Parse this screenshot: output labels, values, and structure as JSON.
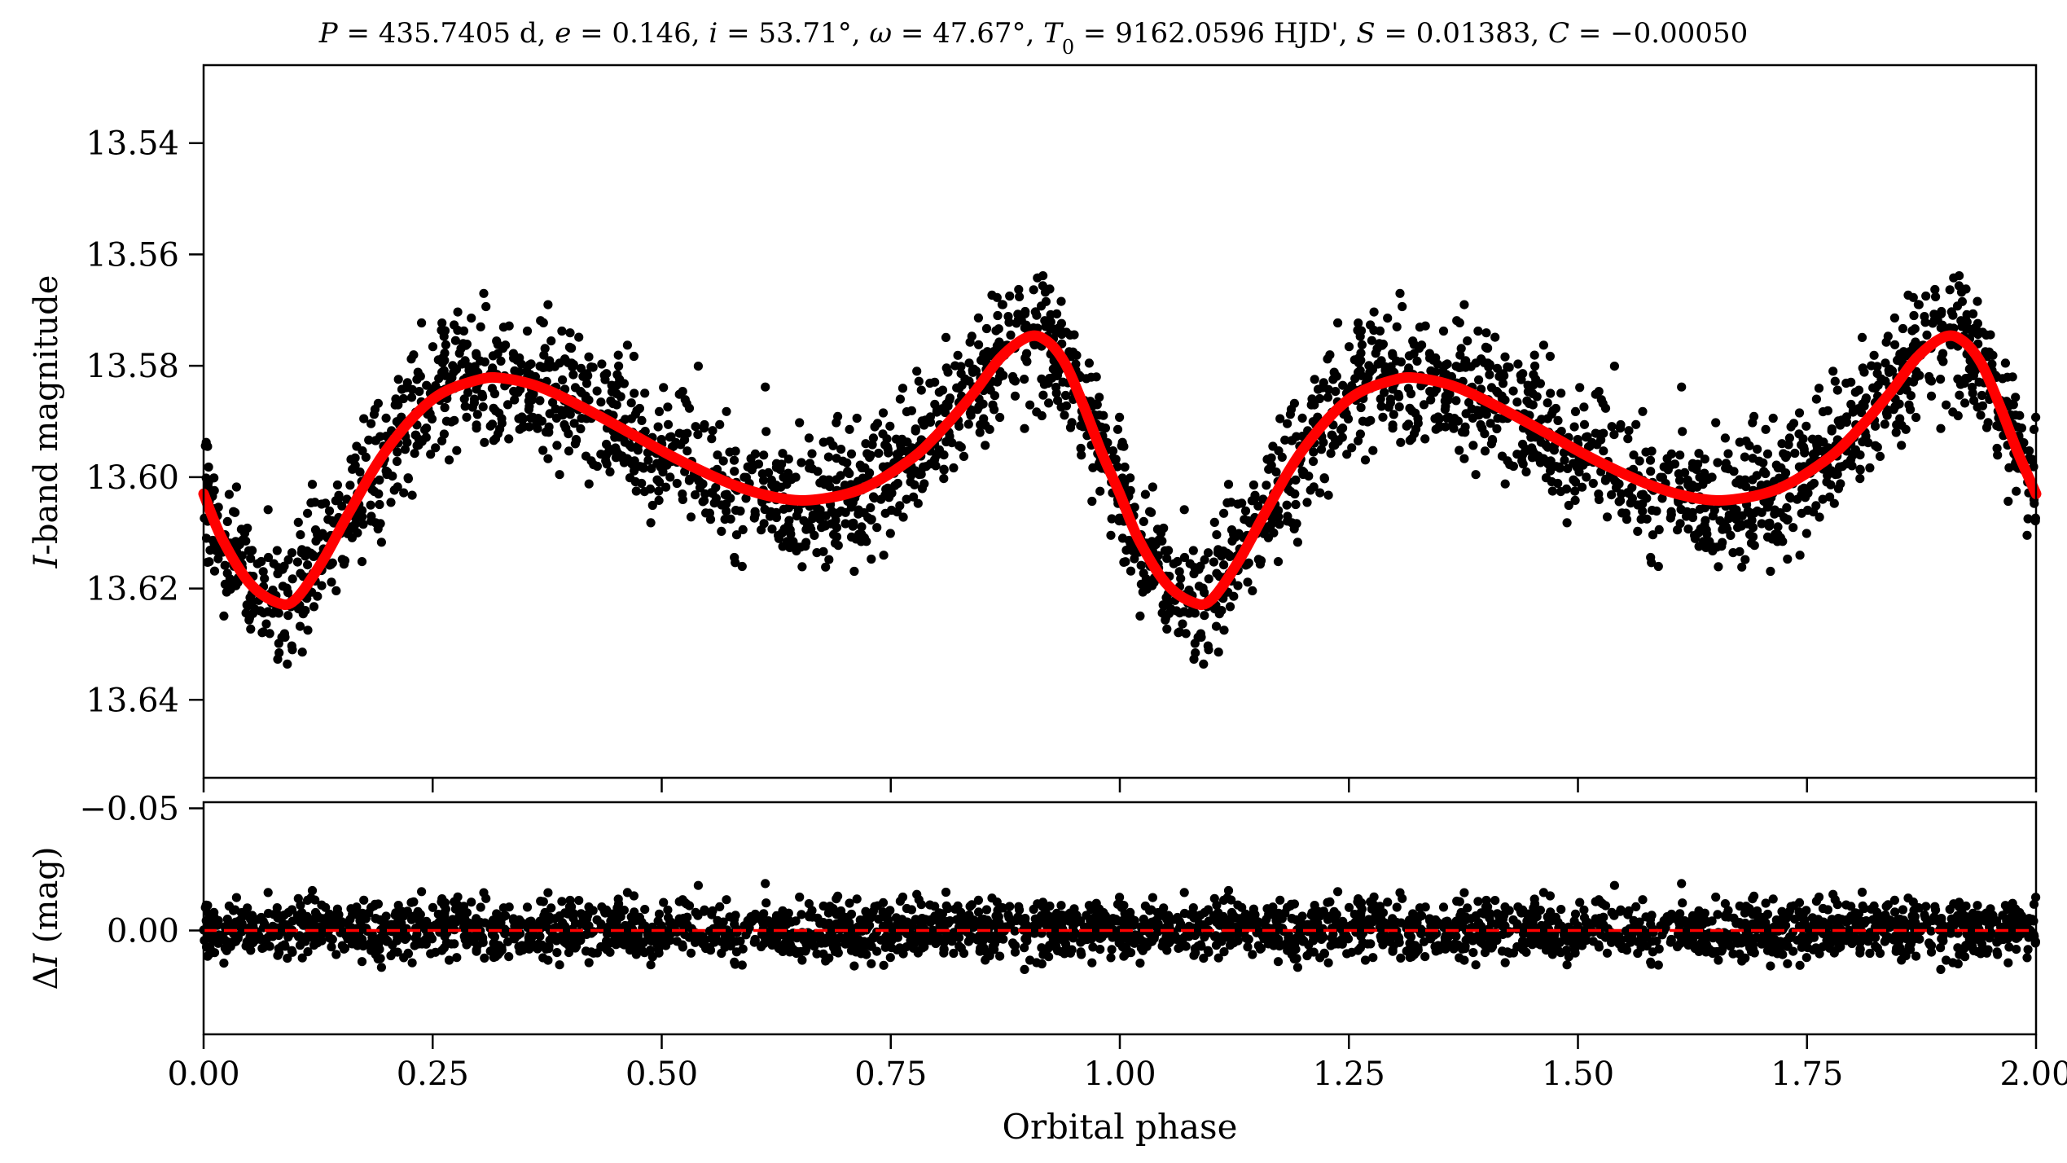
{
  "chart_data": [
    {
      "type": "scatter",
      "panel": "light-curve",
      "title": {
        "segments": [
          {
            "text": "P",
            "italic": true
          },
          {
            "text": " = 435.7405 d, ",
            "italic": false
          },
          {
            "text": "e",
            "italic": true
          },
          {
            "text": " = 0.146, ",
            "italic": false
          },
          {
            "text": "i",
            "italic": true
          },
          {
            "text": " = 53.71°, ",
            "italic": false
          },
          {
            "text": "ω",
            "italic": true
          },
          {
            "text": " = 47.67°, ",
            "italic": false
          },
          {
            "text": "T",
            "italic": true
          },
          {
            "text": "0",
            "italic": false,
            "subscript": true
          },
          {
            "text": " = 9162.0596 HJD', ",
            "italic": false
          },
          {
            "text": "S",
            "italic": true
          },
          {
            "text": " = 0.01383, ",
            "italic": false
          },
          {
            "text": "C",
            "italic": true
          },
          {
            "text": " = −0.00050",
            "italic": false
          }
        ]
      },
      "ylabel": {
        "segments": [
          {
            "text": "I",
            "italic": true
          },
          {
            "text": "-band magnitude",
            "italic": false
          }
        ]
      },
      "xlim": [
        0.0,
        2.0
      ],
      "ylim": [
        13.654,
        13.526
      ],
      "y_inverted": true,
      "yticks": [
        13.54,
        13.56,
        13.58,
        13.6,
        13.62,
        13.64
      ],
      "ytick_labels": [
        "13.54",
        "13.56",
        "13.58",
        "13.60",
        "13.62",
        "13.64"
      ],
      "xticks": [
        0.0,
        0.25,
        0.5,
        0.75,
        1.0,
        1.25,
        1.5,
        1.75,
        2.0
      ],
      "grid": false,
      "series": [
        {
          "kind": "points",
          "color": "#000000",
          "x": [],
          "y": []
        },
        {
          "kind": "model-curve",
          "color": "#ff0000",
          "x": [
            0.0,
            0.02,
            0.05,
            0.08,
            0.1,
            0.13,
            0.16,
            0.2,
            0.25,
            0.3,
            0.33,
            0.37,
            0.42,
            0.47,
            0.52,
            0.58,
            0.63,
            0.67,
            0.72,
            0.77,
            0.8,
            0.84,
            0.87,
            0.9,
            0.92,
            0.94,
            0.96,
            0.98,
            1.0,
            1.02,
            1.05,
            1.08,
            1.1,
            1.13,
            1.16,
            1.2,
            1.25,
            1.3,
            1.33,
            1.37,
            1.42,
            1.47,
            1.52,
            1.58,
            1.63,
            1.67,
            1.72,
            1.77,
            1.8,
            1.84,
            1.87,
            1.9,
            1.92,
            1.94,
            1.96,
            1.98,
            2.0
          ],
          "y": [
            13.603,
            13.611,
            13.619,
            13.6225,
            13.622,
            13.615,
            13.606,
            13.595,
            13.586,
            13.5825,
            13.5823,
            13.584,
            13.588,
            13.5925,
            13.597,
            13.6015,
            13.6038,
            13.604,
            13.602,
            13.597,
            13.5925,
            13.585,
            13.5785,
            13.5748,
            13.5755,
            13.5795,
            13.587,
            13.5955,
            13.603,
            13.611,
            13.619,
            13.6225,
            13.622,
            13.615,
            13.606,
            13.595,
            13.586,
            13.5825,
            13.5823,
            13.584,
            13.588,
            13.5925,
            13.597,
            13.6015,
            13.6038,
            13.604,
            13.602,
            13.597,
            13.5925,
            13.585,
            13.5785,
            13.5748,
            13.5755,
            13.5795,
            13.587,
            13.5955,
            13.603
          ]
        }
      ]
    },
    {
      "type": "scatter",
      "panel": "residuals",
      "xlabel": "Orbital phase",
      "ylabel": {
        "segments": [
          {
            "text": "Δ",
            "italic": false
          },
          {
            "text": "I",
            "italic": true
          },
          {
            "text": " (mag)",
            "italic": false
          }
        ]
      },
      "xlim": [
        0.0,
        2.0
      ],
      "ylim": [
        0.0425,
        -0.0525
      ],
      "y_inverted": true,
      "yticks": [
        -0.05,
        0.0
      ],
      "ytick_labels": [
        "−0.05",
        "0.00"
      ],
      "xticks": [
        0.0,
        0.25,
        0.5,
        0.75,
        1.0,
        1.25,
        1.5,
        1.75,
        2.0
      ],
      "xtick_labels": [
        "0.00",
        "0.25",
        "0.50",
        "0.75",
        "1.00",
        "1.25",
        "1.50",
        "1.75",
        "2.00"
      ],
      "grid": false,
      "series": [
        {
          "kind": "points",
          "color": "#000000",
          "x": [],
          "y": []
        },
        {
          "kind": "reference-line",
          "style": "dashed",
          "color": "#ff0000",
          "y": 0.0
        }
      ]
    }
  ]
}
